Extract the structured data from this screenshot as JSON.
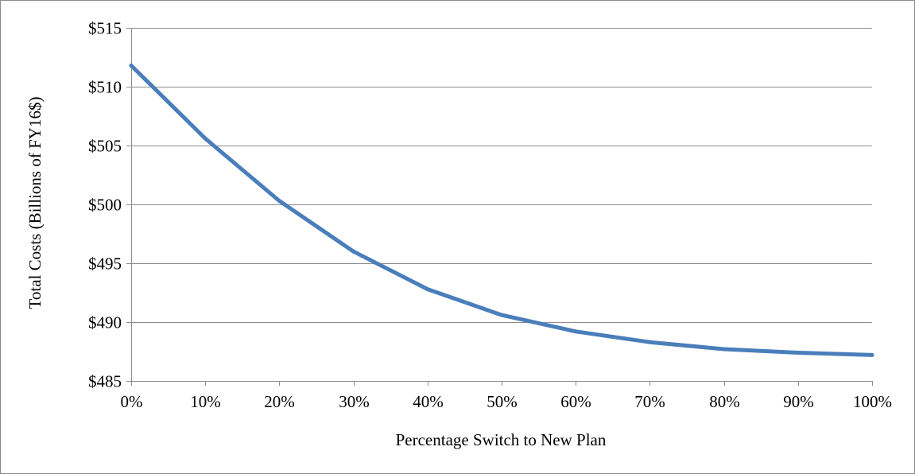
{
  "chart_data": {
    "type": "line",
    "title": "",
    "xlabel": "Percentage Switch to New Plan",
    "ylabel": "Total Costs (Billions of FY16$)",
    "x": [
      0,
      10,
      20,
      30,
      40,
      50,
      60,
      70,
      80,
      90,
      100
    ],
    "x_tick_labels": [
      "0%",
      "10%",
      "20%",
      "30%",
      "40%",
      "50%",
      "60%",
      "70%",
      "80%",
      "90%",
      "100%"
    ],
    "y_ticks": [
      485,
      490,
      495,
      500,
      505,
      510,
      515
    ],
    "y_tick_labels": [
      "$485",
      "$490",
      "$495",
      "$500",
      "$505",
      "$510",
      "$515"
    ],
    "ylim": [
      485,
      515
    ],
    "xlim": [
      0,
      100
    ],
    "grid": true,
    "legend": "none",
    "series": [
      {
        "values": [
          511.8,
          505.6,
          500.3,
          496.0,
          492.8,
          490.6,
          489.2,
          488.3,
          487.7,
          487.4,
          487.2
        ],
        "color": "#4a7ebb"
      }
    ],
    "colors": {
      "gridline": "#8c8c8c",
      "axis": "#8c8c8c",
      "frame": "#8c8c8c"
    }
  }
}
